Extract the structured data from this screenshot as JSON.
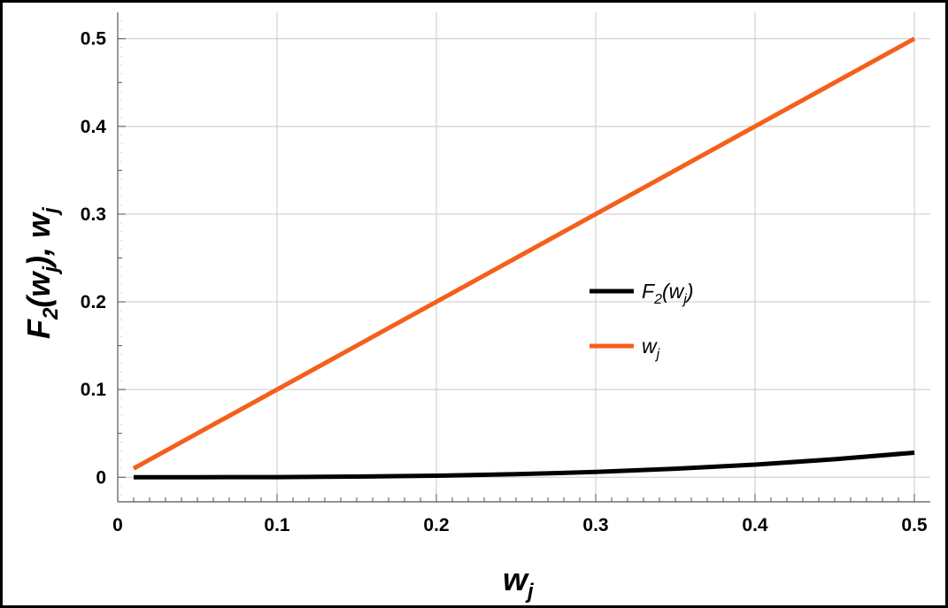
{
  "chart_data": {
    "type": "line",
    "xlabel": "w",
    "xlabel_sub": "j",
    "ylabel_parts": [
      "F",
      "2",
      "(w",
      "j",
      "), w",
      "j"
    ],
    "xlim": [
      0,
      0.51
    ],
    "ylim": [
      -0.028,
      0.53
    ],
    "x_ticks": [
      0,
      0.1,
      0.2,
      0.3,
      0.4,
      0.5
    ],
    "x_tick_labels": [
      "0",
      "0.1",
      "0.2",
      "0.3",
      "0.4",
      "0.5"
    ],
    "y_ticks": [
      0,
      0.1,
      0.2,
      0.3,
      0.4,
      0.5
    ],
    "y_tick_labels": [
      "0",
      "0.1",
      "0.2",
      "0.3",
      "0.4",
      "0.5"
    ],
    "grid": true,
    "legend_placement": "center-right",
    "series": [
      {
        "name": "F2(wj)",
        "legend_parts": [
          "F",
          "2",
          "(w",
          "j",
          ")"
        ],
        "color": "#000000",
        "x": [
          0.01,
          0.05,
          0.1,
          0.15,
          0.2,
          0.25,
          0.3,
          0.35,
          0.4,
          0.45,
          0.5
        ],
        "y": [
          0.0,
          3e-05,
          0.0002,
          0.0008,
          0.0018,
          0.0035,
          0.006,
          0.0097,
          0.0144,
          0.0205,
          0.028
        ]
      },
      {
        "name": "wj",
        "legend_parts": [
          "w",
          "j"
        ],
        "color": "#f4601b",
        "x": [
          0.01,
          0.5
        ],
        "y": [
          0.01,
          0.5
        ]
      }
    ]
  }
}
